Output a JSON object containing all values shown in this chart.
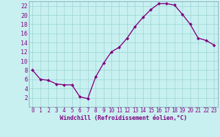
{
  "x": [
    0,
    1,
    2,
    3,
    4,
    5,
    6,
    7,
    8,
    9,
    10,
    11,
    12,
    13,
    14,
    15,
    16,
    17,
    18,
    19,
    20,
    21,
    22,
    23
  ],
  "y": [
    8,
    6,
    5.8,
    5,
    4.8,
    4.8,
    2.2,
    1.8,
    6.5,
    9.5,
    12,
    13,
    15,
    17.5,
    19.5,
    21.2,
    22.5,
    22.5,
    22.2,
    20.2,
    18,
    15,
    14.5,
    13.5
  ],
  "line_color": "#800080",
  "marker": "D",
  "marker_size": 2,
  "bg_color": "#c8f0f0",
  "grid_color": "#a0d8d8",
  "xlabel": "Windchill (Refroidissement éolien,°C)",
  "xlabel_color": "#800080",
  "ylim": [
    0,
    23
  ],
  "xlim": [
    -0.5,
    23.5
  ],
  "yticks": [
    2,
    4,
    6,
    8,
    10,
    12,
    14,
    16,
    18,
    20,
    22
  ],
  "xticks": [
    0,
    1,
    2,
    3,
    4,
    5,
    6,
    7,
    8,
    9,
    10,
    11,
    12,
    13,
    14,
    15,
    16,
    17,
    18,
    19,
    20,
    21,
    22,
    23
  ],
  "tick_fontsize": 5.5,
  "xlabel_fontsize": 6,
  "linewidth": 1.0
}
